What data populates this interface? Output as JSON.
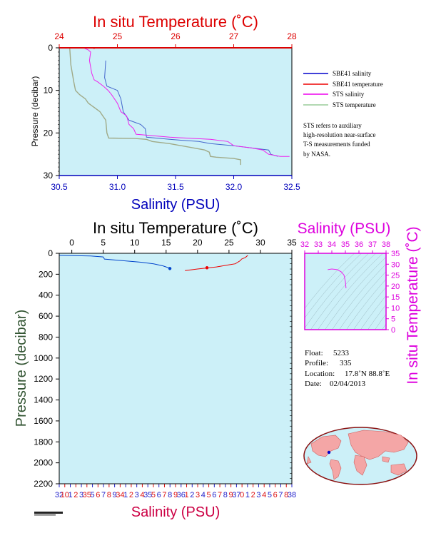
{
  "chart_data": [
    {
      "id": "top",
      "type": "line",
      "title": "In situ Temperature (˚C)",
      "xlabel": "Salinity (PSU)",
      "ylabel": "Pressure (decibar)",
      "xlim": [
        30.5,
        32.5
      ],
      "x_ticks": [
        "30.5",
        "31.0",
        "31.5",
        "32.0",
        "32.5"
      ],
      "x2lim": [
        24,
        28
      ],
      "x2_ticks": [
        "24",
        "25",
        "26",
        "27",
        "28"
      ],
      "ylim": [
        0,
        30
      ],
      "y_ticks": [
        "0",
        "10",
        "20",
        "30"
      ],
      "legend": [
        {
          "label": "SBE41 salinity",
          "color": "#0000cc"
        },
        {
          "label": "SBE41 temperature",
          "color": "#ee0000"
        },
        {
          "label": "STS salinity",
          "color": "#ee00ee"
        },
        {
          "label": "STS temperature",
          "color": "#99cc99"
        }
      ],
      "note": [
        "STS refers to auxiliary",
        "high-resolution near-surface",
        "T-S measurements funded",
        "by NASA."
      ],
      "series": [
        {
          "name": "SBE41 salinity",
          "axis": "salinity",
          "color": "#4466cc",
          "points": [
            [
              30.9,
              3
            ],
            [
              30.89,
              7
            ],
            [
              30.91,
              9
            ],
            [
              31.0,
              10
            ],
            [
              31.03,
              12
            ],
            [
              31.05,
              15
            ],
            [
              31.1,
              17
            ],
            [
              31.2,
              18
            ],
            [
              31.24,
              19
            ],
            [
              31.25,
              21
            ],
            [
              31.45,
              21.5
            ],
            [
              31.7,
              22
            ],
            [
              31.8,
              22.5
            ],
            [
              32.0,
              23
            ],
            [
              32.15,
              23.5
            ],
            [
              32.3,
              24
            ],
            [
              32.32,
              25
            ],
            [
              32.38,
              25.5
            ]
          ]
        },
        {
          "name": "SBE41 temperature",
          "axis": "temperature",
          "color": "#ee0000",
          "points": [
            [
              24.02,
              0
            ],
            [
              24.6,
              0
            ],
            [
              24.6,
              0.3
            ]
          ]
        },
        {
          "name": "STS salinity",
          "axis": "salinity",
          "color": "#ee22ee",
          "points": [
            [
              30.71,
              0
            ],
            [
              30.75,
              0.5
            ],
            [
              30.77,
              1
            ],
            [
              30.76,
              3
            ],
            [
              30.78,
              6
            ],
            [
              30.8,
              7.5
            ],
            [
              30.83,
              8
            ],
            [
              30.88,
              9
            ],
            [
              30.92,
              10
            ],
            [
              30.95,
              11
            ],
            [
              31.0,
              13
            ],
            [
              31.03,
              15
            ],
            [
              31.08,
              16
            ],
            [
              31.1,
              18
            ],
            [
              31.14,
              19
            ],
            [
              31.16,
              20.3
            ],
            [
              31.45,
              21
            ],
            [
              31.8,
              21.5
            ],
            [
              31.95,
              22
            ],
            [
              32.0,
              23
            ],
            [
              32.15,
              23.5
            ],
            [
              32.25,
              24
            ],
            [
              32.3,
              25
            ],
            [
              32.4,
              25.5
            ],
            [
              32.48,
              25.5
            ]
          ]
        },
        {
          "name": "STS temperature",
          "axis": "temperature",
          "color": "#a0aa88",
          "points": [
            [
              24.18,
              0
            ],
            [
              24.2,
              4
            ],
            [
              24.25,
              8
            ],
            [
              24.28,
              10
            ],
            [
              24.35,
              11
            ],
            [
              24.45,
              12
            ],
            [
              24.5,
              13
            ],
            [
              24.6,
              14
            ],
            [
              24.7,
              15
            ],
            [
              24.75,
              16
            ],
            [
              24.8,
              17
            ],
            [
              24.82,
              20
            ],
            [
              24.85,
              21.2
            ],
            [
              25.3,
              21.3
            ],
            [
              25.5,
              21.5
            ],
            [
              25.6,
              22
            ],
            [
              25.9,
              22.5
            ],
            [
              26.3,
              23.5
            ],
            [
              26.5,
              24
            ],
            [
              26.58,
              24.5
            ],
            [
              26.6,
              25.5
            ],
            [
              26.7,
              25.7
            ],
            [
              27.0,
              26
            ],
            [
              27.12,
              26.3
            ],
            [
              27.12,
              27.5
            ]
          ]
        }
      ]
    },
    {
      "id": "main",
      "type": "line",
      "title": "In situ Temperature (˚C)",
      "xlabel": "Salinity (PSU)",
      "ylabel": "Pressure (decibar)",
      "xlim_temperature": [
        -2,
        35
      ],
      "x_ticks_temperature": [
        "0",
        "5",
        "10",
        "15",
        "20",
        "25",
        "30",
        "35"
      ],
      "xlim_salinity": [
        32,
        38
      ],
      "x_ticks_salinity": [
        "32",
        "10",
        "1",
        "2",
        "3",
        "35",
        "5",
        "6",
        "7",
        "8",
        "9",
        "34",
        "1",
        "2",
        "3",
        "4",
        "35",
        "5",
        "6",
        "7",
        "8",
        "9",
        "36",
        "1",
        "2",
        "3",
        "4",
        "5",
        "6",
        "7",
        "8",
        "9",
        "37",
        "0",
        "1",
        "2",
        "3",
        "4",
        "5",
        "6",
        "7",
        "8",
        "38"
      ],
      "ylim": [
        0,
        2200
      ],
      "y_ticks": [
        "0",
        "200",
        "400",
        "600",
        "800",
        "1000",
        "1200",
        "1400",
        "1600",
        "1800",
        "2000",
        "2200"
      ],
      "series": [
        {
          "name": "salinity",
          "axis": "temperature",
          "color": "#0044cc",
          "points": [
            [
              -2,
              20
            ],
            [
              3,
              25
            ],
            [
              5,
              35
            ],
            [
              5.2,
              55
            ],
            [
              8,
              70
            ],
            [
              11,
              85
            ],
            [
              13,
              100
            ],
            [
              14.5,
              120
            ],
            [
              15.5,
              140
            ],
            [
              15.6,
              160
            ]
          ]
        },
        {
          "name": "temperature",
          "axis": "temperature",
          "color": "#ee0000",
          "points": [
            [
              28,
              20
            ],
            [
              27.6,
              40
            ],
            [
              27,
              55
            ],
            [
              26.8,
              70
            ],
            [
              26,
              100
            ],
            [
              25,
              110
            ],
            [
              23,
              130
            ],
            [
              20,
              150
            ],
            [
              18,
              165
            ]
          ]
        }
      ],
      "markers": [
        {
          "series": "salinity",
          "x": 15.6,
          "y": 145
        },
        {
          "series": "temperature",
          "x": 21.5,
          "y": 138
        }
      ]
    },
    {
      "id": "ts",
      "type": "scatter",
      "title": "Salinity (PSU)",
      "ylabel": "In situ Temperature (˚C)",
      "xlim": [
        32,
        38
      ],
      "x_ticks": [
        "32",
        "33",
        "34",
        "35",
        "36",
        "37",
        "38"
      ],
      "ylim": [
        0,
        35
      ],
      "y_ticks": [
        "0",
        "5",
        "10",
        "15",
        "20",
        "25",
        "30",
        "35"
      ],
      "series": [
        {
          "name": "T-S",
          "color": "#ee22ee",
          "points": [
            [
              33.7,
              27.5
            ],
            [
              34.0,
              27.8
            ],
            [
              34.4,
              27.5
            ],
            [
              34.7,
              26.5
            ],
            [
              34.9,
              25
            ],
            [
              35.0,
              22
            ],
            [
              35.05,
              19
            ]
          ]
        }
      ]
    }
  ],
  "info": {
    "float_label": "Float:",
    "float": "5233",
    "profile_label": "Profile:",
    "profile": "335",
    "location_label": "Location:",
    "location": "17.8˚N  88.8˚E",
    "date_label": "Date:",
    "date": "02/04/2013"
  },
  "colors": {
    "plot_bg": "#ccf0f8",
    "red_title": "#dd0000",
    "blue_axis": "#0000bb",
    "magenta": "#dd00dd",
    "green_dark": "#335533",
    "salinity_label": "#cc0044",
    "map_land": "#f4a6a6"
  },
  "icons": {
    "map": "world-map-icon",
    "logo": "credit-logo"
  }
}
